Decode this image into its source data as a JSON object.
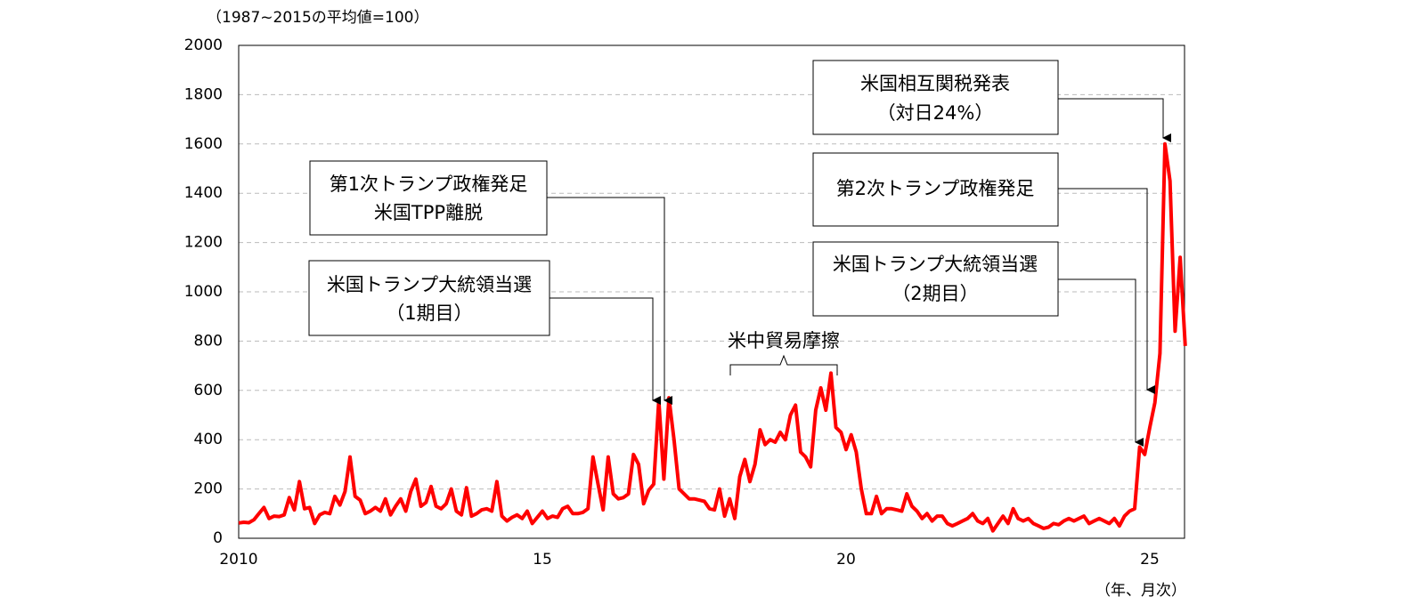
{
  "chart_data": {
    "type": "line",
    "note": "（1987~2015の平均値=100）",
    "x_unit": "（年、月次）",
    "categories": [
      "2010",
      null,
      null,
      null,
      null,
      null,
      null,
      null,
      null,
      null,
      null,
      null,
      null,
      null,
      null,
      null,
      null,
      null,
      null,
      null,
      null,
      null,
      null,
      null,
      null,
      null,
      null,
      null,
      null,
      null,
      null,
      null,
      null,
      null,
      null,
      null,
      null,
      null,
      null,
      null,
      null,
      null,
      null,
      null,
      null,
      null,
      null,
      null,
      null,
      null,
      null,
      null,
      null,
      null,
      null,
      null,
      null,
      null,
      null,
      null,
      "15",
      null,
      null,
      null,
      null,
      null,
      null,
      null,
      null,
      null,
      null,
      null,
      null,
      null,
      null,
      null,
      null,
      null,
      null,
      null,
      null,
      null,
      null,
      null,
      null,
      null,
      null,
      null,
      null,
      null,
      null,
      null,
      null,
      null,
      null,
      null,
      null,
      null,
      null,
      null,
      null,
      null,
      null,
      null,
      null,
      null,
      null,
      null,
      null,
      null,
      null,
      null,
      null,
      null,
      null,
      null,
      null,
      null,
      null,
      null,
      "20",
      null,
      null,
      null,
      null,
      null,
      null,
      null,
      null,
      null,
      null,
      null,
      null,
      null,
      null,
      null,
      null,
      null,
      null,
      null,
      null,
      null,
      null,
      null,
      null,
      null,
      null,
      null,
      null,
      null,
      null,
      null,
      null,
      null,
      null,
      null,
      null,
      null,
      null,
      null,
      null,
      null,
      null,
      null,
      null,
      null,
      null,
      null,
      null,
      null,
      null,
      null,
      null,
      null,
      null,
      null,
      null,
      null,
      null,
      null,
      "25",
      null,
      null,
      null,
      null,
      null,
      null,
      null
    ],
    "series": [
      {
        "color": "#ff0000",
        "values": [
          62,
          65,
          63,
          75,
          100,
          125,
          80,
          90,
          88,
          95,
          165,
          115,
          230,
          120,
          125,
          60,
          95,
          105,
          100,
          170,
          135,
          190,
          330,
          170,
          155,
          100,
          110,
          125,
          110,
          160,
          95,
          130,
          160,
          110,
          190,
          240,
          130,
          145,
          210,
          130,
          120,
          140,
          200,
          110,
          95,
          205,
          90,
          100,
          115,
          120,
          110,
          230,
          90,
          70,
          85,
          95,
          80,
          110,
          60,
          85,
          110,
          80,
          90,
          85,
          120,
          130,
          100,
          100,
          105,
          120,
          330,
          220,
          115,
          330,
          180,
          160,
          165,
          180,
          340,
          300,
          140,
          195,
          220,
          560,
          240,
          570,
          400,
          200,
          180,
          160,
          160,
          155,
          150,
          120,
          115,
          200,
          90,
          160,
          80,
          250,
          320,
          230,
          300,
          440,
          380,
          400,
          390,
          430,
          400,
          500,
          540,
          350,
          330,
          290,
          520,
          610,
          520,
          670,
          450,
          430,
          360,
          420,
          350,
          200,
          100,
          100,
          170,
          100,
          120,
          120,
          115,
          110,
          180,
          130,
          110,
          80,
          100,
          70,
          90,
          90,
          60,
          50,
          60,
          70,
          80,
          100,
          70,
          60,
          80,
          30,
          60,
          90,
          60,
          120,
          80,
          70,
          80,
          60,
          50,
          40,
          45,
          60,
          55,
          70,
          80,
          70,
          80,
          90,
          60,
          70,
          80,
          70,
          60,
          80,
          50,
          90,
          110,
          120,
          370,
          340,
          450,
          550,
          750,
          1600,
          1450,
          840,
          1140,
          780
        ]
      }
    ],
    "ylim": [
      0,
      2000
    ],
    "yticks": [
      0,
      200,
      400,
      600,
      800,
      1000,
      1200,
      1400,
      1600,
      1800,
      2000
    ],
    "grid": true,
    "annotations": [
      {
        "lines": [
          "第1次トランプ政権発足",
          "米国TPP離脱"
        ]
      },
      {
        "lines": [
          "米国トランプ大統領当選",
          "（1期目）"
        ]
      },
      {
        "lines": [
          "米中貿易摩擦"
        ]
      },
      {
        "lines": [
          "米国相互関税発表",
          "（対日24%）"
        ]
      },
      {
        "lines": [
          "第2次トランプ政権発足"
        ]
      },
      {
        "lines": [
          "米国トランプ大統領当選",
          "（2期目）"
        ]
      }
    ]
  }
}
